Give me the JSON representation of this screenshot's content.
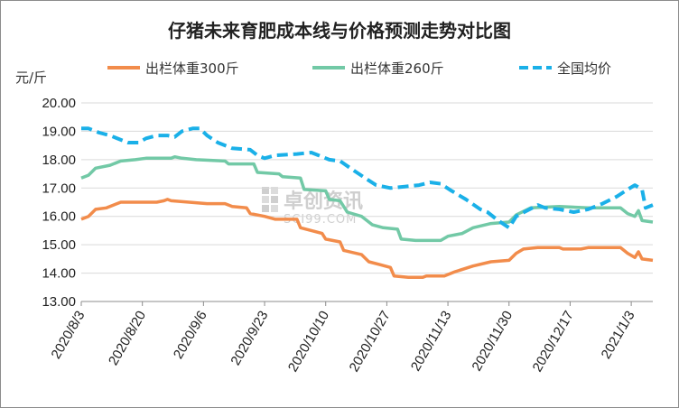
{
  "chart_data": {
    "type": "line",
    "title": "仔猪未来育肥成本线与价格预测走势对比图",
    "ylabel": "元/斤",
    "ylim": [
      13.0,
      20.0
    ],
    "yticks": [
      "13.00",
      "14.00",
      "15.00",
      "16.00",
      "17.00",
      "18.00",
      "19.00",
      "20.00"
    ],
    "x_range": [
      "2020/8/3",
      "2021/1/9"
    ],
    "xticks": [
      "2020/8/3",
      "2020/8/20",
      "2020/9/6",
      "2020/9/23",
      "2020/10/10",
      "2020/10/27",
      "2020/11/13",
      "2020/11/30",
      "2020/12/17",
      "2021/1/3"
    ],
    "grid": "horizontal",
    "legend_position": "top",
    "series": [
      {
        "name": "出栏体重300斤",
        "color": "#f28c4b",
        "dash": "solid",
        "points": [
          [
            "2020/8/3",
            15.9
          ],
          [
            "2020/8/5",
            16.0
          ],
          [
            "2020/8/7",
            16.25
          ],
          [
            "2020/8/10",
            16.3
          ],
          [
            "2020/8/12",
            16.4
          ],
          [
            "2020/8/14",
            16.5
          ],
          [
            "2020/8/17",
            16.5
          ],
          [
            "2020/8/20",
            16.5
          ],
          [
            "2020/8/24",
            16.5
          ],
          [
            "2020/8/26",
            16.55
          ],
          [
            "2020/8/27",
            16.6
          ],
          [
            "2020/8/28",
            16.55
          ],
          [
            "2020/9/2",
            16.5
          ],
          [
            "2020/9/7",
            16.45
          ],
          [
            "2020/9/12",
            16.45
          ],
          [
            "2020/9/14",
            16.35
          ],
          [
            "2020/9/18",
            16.3
          ],
          [
            "2020/9/19",
            16.1
          ],
          [
            "2020/9/23",
            16.0
          ],
          [
            "2020/9/26",
            15.9
          ],
          [
            "2020/10/2",
            15.9
          ],
          [
            "2020/10/3",
            15.6
          ],
          [
            "2020/10/6",
            15.5
          ],
          [
            "2020/10/9",
            15.4
          ],
          [
            "2020/10/10",
            15.2
          ],
          [
            "2020/10/14",
            15.1
          ],
          [
            "2020/10/15",
            14.8
          ],
          [
            "2020/10/20",
            14.65
          ],
          [
            "2020/10/22",
            14.4
          ],
          [
            "2020/10/25",
            14.3
          ],
          [
            "2020/10/28",
            14.2
          ],
          [
            "2020/10/29",
            13.9
          ],
          [
            "2020/11/2",
            13.85
          ],
          [
            "2020/11/6",
            13.85
          ],
          [
            "2020/11/7",
            13.9
          ],
          [
            "2020/11/12",
            13.9
          ],
          [
            "2020/11/15",
            14.05
          ],
          [
            "2020/11/20",
            14.25
          ],
          [
            "2020/11/25",
            14.4
          ],
          [
            "2020/11/30",
            14.45
          ],
          [
            "2020/12/2",
            14.7
          ],
          [
            "2020/12/4",
            14.85
          ],
          [
            "2020/12/8",
            14.9
          ],
          [
            "2020/12/14",
            14.9
          ],
          [
            "2020/12/15",
            14.85
          ],
          [
            "2020/12/20",
            14.85
          ],
          [
            "2020/12/22",
            14.9
          ],
          [
            "2020/12/31",
            14.9
          ],
          [
            "2021/1/2",
            14.7
          ],
          [
            "2021/1/4",
            14.55
          ],
          [
            "2021/1/5",
            14.75
          ],
          [
            "2021/1/6",
            14.5
          ],
          [
            "2021/1/9",
            14.45
          ]
        ]
      },
      {
        "name": "出栏体重260斤",
        "color": "#72c9a6",
        "dash": "solid",
        "points": [
          [
            "2020/8/3",
            17.35
          ],
          [
            "2020/8/5",
            17.45
          ],
          [
            "2020/8/7",
            17.7
          ],
          [
            "2020/8/11",
            17.8
          ],
          [
            "2020/8/14",
            17.95
          ],
          [
            "2020/8/18",
            18.0
          ],
          [
            "2020/8/21",
            18.05
          ],
          [
            "2020/8/28",
            18.05
          ],
          [
            "2020/8/29",
            18.1
          ],
          [
            "2020/8/31",
            18.05
          ],
          [
            "2020/9/4",
            18.0
          ],
          [
            "2020/9/12",
            17.95
          ],
          [
            "2020/9/13",
            17.85
          ],
          [
            "2020/9/20",
            17.85
          ],
          [
            "2020/9/21",
            17.55
          ],
          [
            "2020/9/27",
            17.5
          ],
          [
            "2020/9/28",
            17.4
          ],
          [
            "2020/10/3",
            17.35
          ],
          [
            "2020/10/4",
            16.95
          ],
          [
            "2020/10/10",
            16.9
          ],
          [
            "2020/10/11",
            16.6
          ],
          [
            "2020/10/14",
            16.55
          ],
          [
            "2020/10/16",
            16.15
          ],
          [
            "2020/10/20",
            16.0
          ],
          [
            "2020/10/23",
            15.7
          ],
          [
            "2020/10/26",
            15.6
          ],
          [
            "2020/10/30",
            15.55
          ],
          [
            "2020/10/31",
            15.2
          ],
          [
            "2020/11/4",
            15.15
          ],
          [
            "2020/11/11",
            15.15
          ],
          [
            "2020/11/13",
            15.3
          ],
          [
            "2020/11/17",
            15.4
          ],
          [
            "2020/11/20",
            15.6
          ],
          [
            "2020/11/25",
            15.75
          ],
          [
            "2020/11/30",
            15.8
          ],
          [
            "2020/12/2",
            16.05
          ],
          [
            "2020/12/6",
            16.3
          ],
          [
            "2020/12/14",
            16.35
          ],
          [
            "2020/12/22",
            16.3
          ],
          [
            "2020/12/31",
            16.3
          ],
          [
            "2021/1/2",
            16.1
          ],
          [
            "2021/1/4",
            16.0
          ],
          [
            "2021/1/5",
            16.2
          ],
          [
            "2021/1/6",
            15.85
          ],
          [
            "2021/1/9",
            15.8
          ]
        ]
      },
      {
        "name": "全国均价",
        "color": "#1ab0e8",
        "dash": "dashed",
        "points": [
          [
            "2020/8/3",
            19.1
          ],
          [
            "2020/8/5",
            19.1
          ],
          [
            "2020/8/8",
            18.95
          ],
          [
            "2020/8/11",
            18.85
          ],
          [
            "2020/8/14",
            18.7
          ],
          [
            "2020/8/16",
            18.6
          ],
          [
            "2020/8/19",
            18.6
          ],
          [
            "2020/8/21",
            18.75
          ],
          [
            "2020/8/24",
            18.85
          ],
          [
            "2020/8/27",
            18.85
          ],
          [
            "2020/8/29",
            18.8
          ],
          [
            "2020/8/31",
            19.0
          ],
          [
            "2020/9/3",
            19.1
          ],
          [
            "2020/9/5",
            19.1
          ],
          [
            "2020/9/7",
            18.85
          ],
          [
            "2020/9/10",
            18.6
          ],
          [
            "2020/9/14",
            18.4
          ],
          [
            "2020/9/19",
            18.35
          ],
          [
            "2020/9/21",
            18.15
          ],
          [
            "2020/9/23",
            18.05
          ],
          [
            "2020/9/26",
            18.15
          ],
          [
            "2020/10/2",
            18.2
          ],
          [
            "2020/10/6",
            18.25
          ],
          [
            "2020/10/8",
            18.15
          ],
          [
            "2020/10/11",
            18.0
          ],
          [
            "2020/10/14",
            17.95
          ],
          [
            "2020/10/18",
            17.6
          ],
          [
            "2020/10/21",
            17.35
          ],
          [
            "2020/10/24",
            17.1
          ],
          [
            "2020/10/28",
            17.0
          ],
          [
            "2020/11/1",
            17.05
          ],
          [
            "2020/11/5",
            17.1
          ],
          [
            "2020/11/8",
            17.2
          ],
          [
            "2020/11/11",
            17.15
          ],
          [
            "2020/11/14",
            16.9
          ],
          [
            "2020/11/18",
            16.6
          ],
          [
            "2020/11/22",
            16.25
          ],
          [
            "2020/11/24",
            16.15
          ],
          [
            "2020/11/27",
            15.85
          ],
          [
            "2020/11/30",
            15.6
          ],
          [
            "2020/12/2",
            16.0
          ],
          [
            "2020/12/5",
            16.2
          ],
          [
            "2020/12/8",
            16.4
          ],
          [
            "2020/12/10",
            16.3
          ],
          [
            "2020/12/14",
            16.25
          ],
          [
            "2020/12/18",
            16.15
          ],
          [
            "2020/12/22",
            16.25
          ],
          [
            "2020/12/26",
            16.45
          ],
          [
            "2020/12/30",
            16.7
          ],
          [
            "2021/1/2",
            16.95
          ],
          [
            "2021/1/4",
            17.1
          ],
          [
            "2021/1/6",
            16.95
          ],
          [
            "2021/1/7",
            16.3
          ],
          [
            "2021/1/9",
            16.4
          ]
        ]
      }
    ],
    "watermark": {
      "cn": "卓创资讯",
      "en": "SCI99.COM"
    }
  }
}
